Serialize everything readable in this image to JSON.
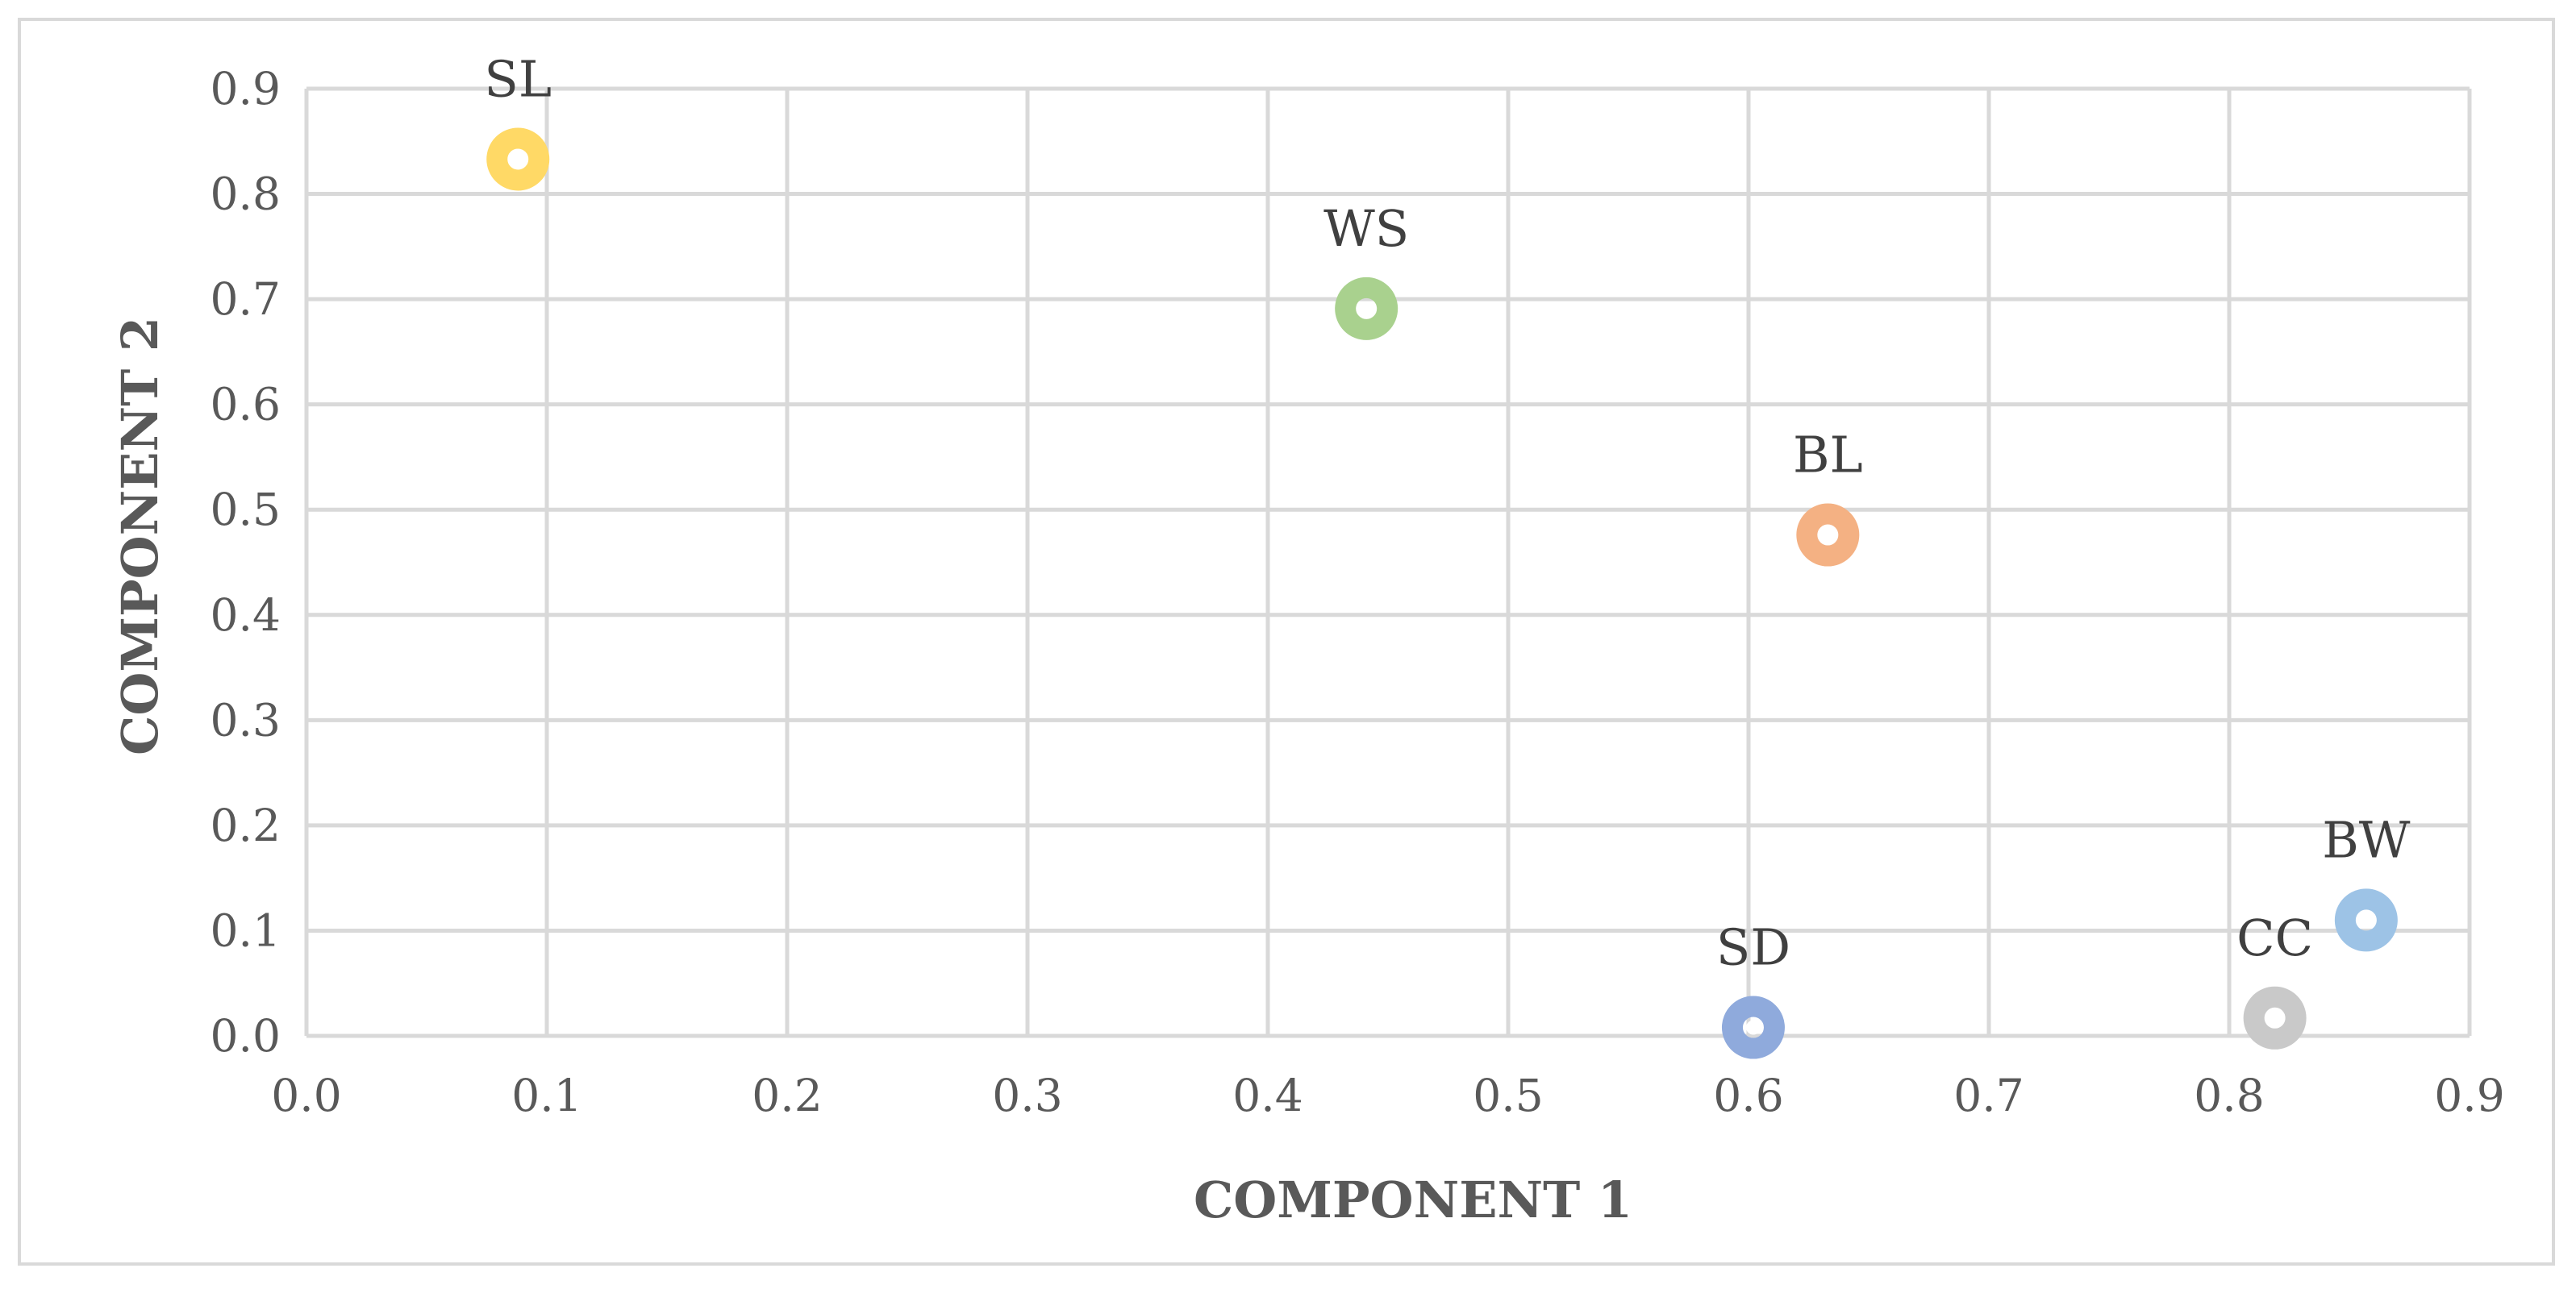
{
  "chart_data": {
    "type": "scatter",
    "title": "",
    "xlabel": "COMPONENT 1",
    "ylabel": "COMPONENT 2",
    "xlim": [
      0,
      0.9
    ],
    "ylim": [
      0,
      0.9
    ],
    "x_ticks": [
      "0.0",
      "0.1",
      "0.2",
      "0.3",
      "0.4",
      "0.5",
      "0.6",
      "0.7",
      "0.8",
      "0.9"
    ],
    "y_ticks": [
      "0.0",
      "0.1",
      "0.2",
      "0.3",
      "0.4",
      "0.5",
      "0.6",
      "0.7",
      "0.8",
      "0.9"
    ],
    "grid": true,
    "legend": "none",
    "points": [
      {
        "label": "SL",
        "x": 0.088,
        "y": 0.833,
        "color": "#ffd966"
      },
      {
        "label": "WS",
        "x": 0.441,
        "y": 0.691,
        "color": "#a9d18e"
      },
      {
        "label": "BL",
        "x": 0.633,
        "y": 0.476,
        "color": "#f4b183"
      },
      {
        "label": "SD",
        "x": 0.602,
        "y": 0.008,
        "color": "#8faadc"
      },
      {
        "label": "CC",
        "x": 0.819,
        "y": 0.017,
        "color": "#c9c9c9"
      },
      {
        "label": "BW",
        "x": 0.857,
        "y": 0.11,
        "color": "#9dc3e6"
      }
    ]
  }
}
